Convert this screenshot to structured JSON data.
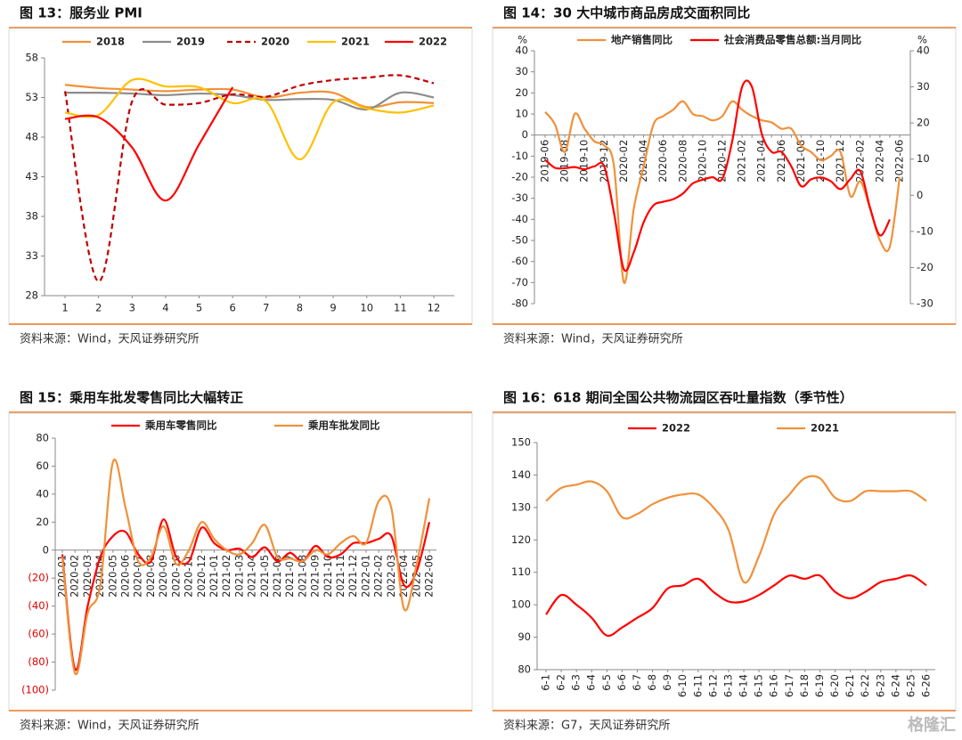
{
  "chart_data": [
    {
      "type": "line",
      "title": "图 13：服务业 PMI",
      "source": "资料来源：Wind，天风证券研究所",
      "categories": [
        "1",
        "2",
        "3",
        "4",
        "5",
        "6",
        "7",
        "8",
        "9",
        "10",
        "11",
        "12"
      ],
      "ylim": [
        28,
        58
      ],
      "yticks": [
        28,
        33,
        38,
        43,
        48,
        53,
        58
      ],
      "series": [
        {
          "name": "2018",
          "color": "#f0913a",
          "values": [
            54.6,
            54.2,
            54.0,
            53.8,
            54.0,
            54.0,
            53.0,
            53.6,
            53.6,
            51.8,
            52.4,
            52.3
          ]
        },
        {
          "name": "2019",
          "color": "#8c8c8c",
          "values": [
            53.6,
            53.6,
            53.5,
            53.3,
            53.5,
            53.3,
            52.7,
            52.8,
            52.7,
            51.5,
            53.6,
            53.0
          ]
        },
        {
          "name": "2020",
          "color": "#c00000",
          "dash": true,
          "values": [
            53.8,
            29.8,
            52.5,
            52.1,
            52.3,
            53.4,
            53.1,
            54.5,
            55.2,
            55.5,
            55.8,
            54.8
          ]
        },
        {
          "name": "2021",
          "color": "#ffc000",
          "values": [
            51.1,
            50.8,
            55.2,
            54.4,
            54.3,
            52.3,
            52.5,
            45.2,
            52.4,
            51.6,
            51.1,
            52.0
          ]
        },
        {
          "name": "2022",
          "color": "#ff0000",
          "values": [
            50.3,
            50.5,
            46.7,
            40.0,
            47.1,
            54.3,
            null,
            null,
            null,
            null,
            null,
            null
          ]
        }
      ]
    },
    {
      "type": "line",
      "title": "图 14：30 大中城市商品房成交面积同比",
      "source": "资料来源：Wind，天风证券研究所",
      "y_unit": "%",
      "y2_unit": "%",
      "categories": [
        "2019-06",
        null,
        "2019-08",
        null,
        "2019-10",
        null,
        "2019-12",
        null,
        "2020-02",
        null,
        "2020-04",
        null,
        "2020-06",
        null,
        "2020-08",
        null,
        "2020-10",
        null,
        "2020-12",
        null,
        "2021-02",
        null,
        "2021-04",
        null,
        "2021-06",
        null,
        "2021-08",
        null,
        "2021-10",
        null,
        "2021-12",
        null,
        "2022-02",
        null,
        "2022-04",
        null,
        "2022-06"
      ],
      "ylim": [
        -80,
        40
      ],
      "yticks": [
        -80,
        -70,
        -60,
        -50,
        -40,
        -30,
        -20,
        -10,
        0,
        10,
        20,
        30,
        40
      ],
      "y2lim": [
        -30,
        40
      ],
      "y2ticks": [
        -30,
        -20,
        -10,
        0,
        10,
        20,
        30,
        40
      ],
      "series": [
        {
          "name": "地产销售同比",
          "color": "#f0913a",
          "values": [
            11,
            5,
            -8,
            10,
            3,
            -3,
            -5,
            -15,
            -70,
            -35,
            -15,
            5,
            9,
            12,
            16,
            10,
            9,
            7,
            9,
            16,
            12,
            9,
            7,
            6,
            3,
            3,
            -5,
            -8,
            -12,
            -10,
            -8,
            -29,
            -22,
            -35,
            -50,
            -53,
            -20
          ]
        },
        {
          "name": "社会消费品零售总额:当月同比",
          "color": "#ff0000",
          "axis": "y2",
          "values": [
            9.8,
            7.6,
            7.5,
            7.8,
            7.2,
            8.0,
            8.0,
            -5,
            -20.5,
            -15.8,
            -7.5,
            -2.8,
            -1.8,
            -1.1,
            0.5,
            3.3,
            4.3,
            5.0,
            4.6,
            15,
            30,
            30,
            17,
            12,
            12,
            8,
            2.5,
            4.4,
            4.9,
            3.9,
            1.7,
            4.5,
            6.7,
            -3.5,
            -11.1,
            -6.7,
            null
          ]
        }
      ]
    },
    {
      "type": "line",
      "title": "图 15：乘用车批发零售同比大幅转正",
      "source": "资料来源：Wind，天风证券研究所",
      "negative_tick_color": "#e00000",
      "categories": [
        "2020-01",
        "2020-02",
        "2020-03",
        "2020-04",
        "2020-05",
        "2020-06",
        "2020-07",
        "2020-08",
        "2020-09",
        "2020-10",
        "2020-11",
        "2020-12",
        "2021-01",
        "2021-02",
        "2021-03",
        "2021-04",
        "2021-05",
        "2021-06",
        "2021-07",
        "2021-08",
        "2021-09",
        "2021-10",
        "2021-11",
        "2021-12",
        "2022-01",
        "2022-02",
        "2022-03",
        "2022-04",
        "2022-05",
        "2022-06"
      ],
      "ylim": [
        -100,
        80
      ],
      "yticks": [
        {
          "value": -100,
          "label": "(100)"
        },
        {
          "value": -80,
          "label": "(80)"
        },
        {
          "value": -60,
          "label": "(60)"
        },
        {
          "value": -40,
          "label": "(40)"
        },
        {
          "value": -20,
          "label": "(20)"
        },
        0,
        20,
        40,
        60,
        80
      ],
      "series": [
        {
          "name": "乘用车零售同比",
          "color": "#ff0000",
          "values": [
            -3,
            -85,
            -40,
            -5,
            10,
            13,
            -3,
            -8,
            22,
            -5,
            -8,
            16,
            5,
            0,
            1,
            -5,
            2,
            -8,
            -2,
            -8,
            3,
            -5,
            -3,
            5,
            5,
            8,
            10,
            -25,
            -15,
            20
          ]
        },
        {
          "name": "乘用车批发同比",
          "color": "#f0913a",
          "values": [
            -5,
            -88,
            -45,
            -25,
            63,
            30,
            -8,
            -5,
            17,
            -10,
            0,
            20,
            8,
            0,
            -3,
            5,
            18,
            -5,
            -6,
            -8,
            0,
            -3,
            5,
            10,
            5,
            35,
            30,
            -42,
            -10,
            37
          ]
        }
      ]
    },
    {
      "type": "line",
      "title": "图 16：618 期间全国公共物流园区吞吐量指数（季节性）",
      "source": "资料来源：G7，天风证券研究所",
      "watermark": "格隆汇",
      "categories": [
        "6-1",
        "6-2",
        "6-3",
        "6-4",
        "6-5",
        "6-6",
        "6-7",
        "6-8",
        "6-9",
        "6-10",
        "6-11",
        "6-12",
        "6-13",
        "6-14",
        "6-15",
        "6-16",
        "6-17",
        "6-18",
        "6-19",
        "6-20",
        "6-21",
        "6-22",
        "6-23",
        "6-24",
        "6-25",
        "6-26"
      ],
      "ylim": [
        80,
        150
      ],
      "yticks": [
        80,
        90,
        100,
        110,
        120,
        130,
        140,
        150
      ],
      "series": [
        {
          "name": "2022",
          "color": "#ff0000",
          "values": [
            97,
            103,
            100,
            96,
            90.5,
            93,
            96,
            99,
            105,
            106,
            108,
            104,
            101,
            101,
            103,
            106,
            109,
            108,
            109,
            104,
            102,
            104,
            107,
            108,
            109,
            106
          ]
        },
        {
          "name": "2021",
          "color": "#f0913a",
          "values": [
            132,
            136,
            137,
            138,
            135,
            127,
            128,
            131,
            133,
            134,
            134,
            130,
            123,
            107,
            115,
            128,
            134,
            139,
            139,
            133,
            132,
            135,
            135,
            135,
            135,
            132
          ]
        }
      ]
    }
  ]
}
